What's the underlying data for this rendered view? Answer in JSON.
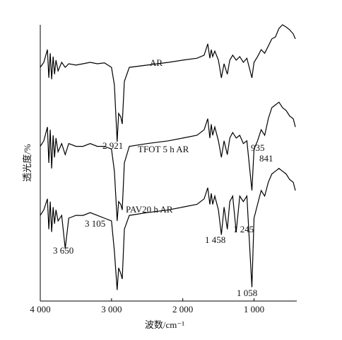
{
  "chart_data": {
    "type": "line",
    "x_label": "波数/cm⁻¹",
    "y_label": "透光度/%",
    "xlim": [
      4000,
      400
    ],
    "ylim": [
      0,
      100
    ],
    "xticks": [
      {
        "value": 4000,
        "label": "4 000"
      },
      {
        "value": 3000,
        "label": "3 000"
      },
      {
        "value": 2000,
        "label": "2 000"
      },
      {
        "value": 1000,
        "label": "1 000"
      }
    ],
    "x": [
      4000,
      3950,
      3900,
      3880,
      3860,
      3840,
      3820,
      3800,
      3780,
      3750,
      3700,
      3650,
      3600,
      3500,
      3400,
      3300,
      3200,
      3100,
      3000,
      2960,
      2921,
      2900,
      2870,
      2850,
      2820,
      2750,
      2500,
      2200,
      2000,
      1800,
      1700,
      1650,
      1620,
      1600,
      1580,
      1550,
      1500,
      1458,
      1420,
      1375,
      1340,
      1300,
      1250,
      1200,
      1150,
      1100,
      1030,
      1000,
      950,
      900,
      850,
      800,
      750,
      700,
      650,
      600,
      550,
      500,
      450,
      420
    ],
    "series": [
      {
        "name": "AR",
        "color": "#000000",
        "values": [
          84.6,
          86.4,
          91.0,
          80.8,
          89.7,
          80.3,
          88.5,
          82.1,
          87.2,
          83.3,
          86.4,
          84.6,
          85.9,
          85.4,
          85.9,
          86.4,
          85.9,
          86.2,
          84.6,
          78.2,
          57.7,
          67.9,
          66.7,
          64.1,
          79.5,
          84.6,
          85.4,
          86.4,
          87.2,
          87.9,
          89.0,
          93.1,
          87.9,
          91.0,
          88.5,
          90.5,
          87.2,
          80.8,
          85.9,
          82.1,
          87.2,
          89.0,
          87.2,
          88.5,
          86.4,
          87.9,
          80.8,
          86.4,
          88.5,
          91.0,
          89.7,
          92.3,
          94.9,
          95.6,
          98.7,
          100,
          99.2,
          98.2,
          96.7,
          94.9
        ]
      },
      {
        "name": "TFOT 5 h AR",
        "color": "#000000",
        "values": [
          56,
          58,
          63,
          50,
          62,
          48,
          60,
          52,
          59,
          54,
          57,
          53,
          57,
          56,
          56,
          57,
          56,
          56,
          55,
          47,
          29,
          36,
          35,
          33,
          50,
          56,
          57,
          58,
          59,
          60,
          62,
          66,
          59,
          64,
          60,
          63,
          58,
          52,
          58,
          53,
          59,
          61,
          59,
          60,
          57,
          58,
          40,
          55,
          58,
          62,
          60,
          66,
          70,
          71,
          72,
          70,
          69,
          67,
          66,
          63
        ]
      },
      {
        "name": "PAV20 h AR",
        "color": "#000000",
        "values": [
          31,
          33,
          37,
          26,
          36,
          25,
          34,
          28,
          33,
          29,
          31,
          19,
          30,
          31,
          31,
          32,
          31,
          30,
          29,
          18,
          4,
          12,
          10,
          8,
          26,
          31,
          32,
          33,
          34,
          35,
          37,
          41,
          35,
          39,
          35,
          38,
          33,
          24,
          34,
          26,
          36,
          38,
          25,
          38,
          36,
          38,
          5,
          30,
          35,
          40,
          38,
          43,
          46,
          47,
          48,
          47,
          46,
          44,
          43,
          40
        ]
      }
    ],
    "annotations": [
      "2 921",
      "935",
      "841",
      "3 105",
      "3 650",
      "1 458",
      "1 245",
      "1 058"
    ]
  }
}
